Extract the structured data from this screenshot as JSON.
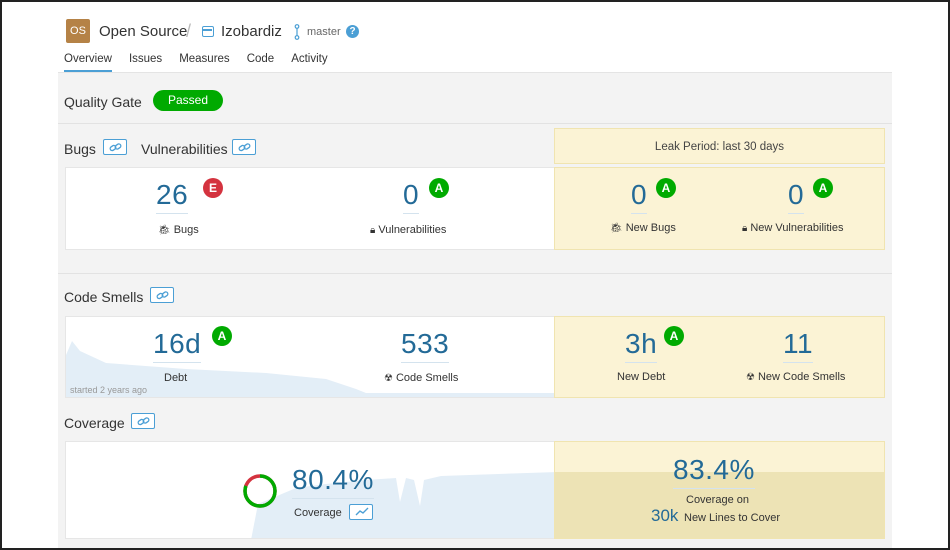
{
  "header": {
    "org_avatar": "OS",
    "org_name": "Open Source",
    "separator": "/",
    "project_name": "Izobardiz",
    "branch": "master",
    "help_icon": "question-circle-icon"
  },
  "tabs": [
    {
      "label": "Overview",
      "active": true
    },
    {
      "label": "Issues",
      "active": false
    },
    {
      "label": "Measures",
      "active": false
    },
    {
      "label": "Code",
      "active": false
    },
    {
      "label": "Activity",
      "active": false
    }
  ],
  "quality_gate": {
    "label": "Quality Gate",
    "status": "Passed",
    "status_color": "#00aa00"
  },
  "bugs_section": {
    "title_bugs": "Bugs",
    "title_vulnerabilities": "Vulnerabilities",
    "leak_period": "Leak Period: last 30 days",
    "bugs": {
      "value": "26",
      "rating": "E",
      "label": "Bugs",
      "icon": "bug-icon"
    },
    "vulnerabilities": {
      "value": "0",
      "rating": "A",
      "label": "Vulnerabilities",
      "icon": "lock-icon"
    },
    "new_bugs": {
      "value": "0",
      "rating": "A",
      "label": "New Bugs",
      "icon": "bug-icon"
    },
    "new_vulnerabilities": {
      "value": "0",
      "rating": "A",
      "label": "New Vulnerabilities",
      "icon": "lock-icon"
    }
  },
  "code_smells_section": {
    "title": "Code Smells",
    "debt": {
      "value": "16d",
      "rating": "A",
      "label": "Debt",
      "note": "started 2 years ago"
    },
    "code_smells": {
      "value": "533",
      "label": "Code Smells",
      "icon": "radiation-icon"
    },
    "new_debt": {
      "value": "3h",
      "rating": "A",
      "label": "New Debt"
    },
    "new_code_smells": {
      "value": "11",
      "label": "New Code Smells",
      "icon": "radiation-icon"
    }
  },
  "coverage_section": {
    "title": "Coverage",
    "coverage": {
      "value": "80.4%",
      "label": "Coverage",
      "percent": 80.4
    },
    "new_coverage": {
      "value": "83.4%",
      "label": "Coverage on",
      "lines_value": "30k",
      "lines_label": "New Lines to Cover"
    }
  },
  "colors": {
    "accent": "#4b9fd5",
    "rating_a": "#00aa00",
    "rating_e": "#d4333f",
    "leak_bg": "#fbf3d5",
    "metric_value": "#236a97"
  }
}
